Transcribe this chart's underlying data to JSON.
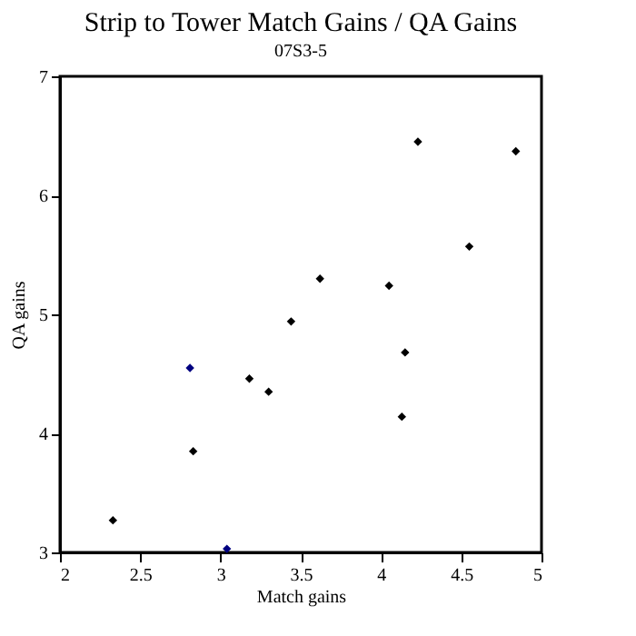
{
  "chart_data": {
    "type": "scatter",
    "title": "Strip to Tower Match Gains / QA Gains",
    "subtitle": "07S3-5",
    "xlabel": "Match gains",
    "ylabel": "QA gains",
    "x": [
      2.33,
      2.81,
      2.83,
      3.04,
      3.18,
      3.3,
      3.44,
      3.62,
      4.05,
      4.15,
      4.13,
      4.23,
      4.55,
      4.84
    ],
    "values": [
      3.27,
      4.55,
      3.85,
      3.03,
      4.46,
      4.35,
      4.94,
      5.3,
      5.24,
      4.68,
      4.14,
      6.45,
      5.57,
      6.37
    ],
    "colors": [
      "#000000",
      "#000080",
      "#000000",
      "#000080",
      "#000000",
      "#000000",
      "#000000",
      "#000000",
      "#000000",
      "#000000",
      "#000000",
      "#000000",
      "#000000",
      "#000000"
    ],
    "xlim": [
      2,
      5
    ],
    "xticks": [
      2,
      2.5,
      3,
      3.5,
      4,
      4.5,
      5
    ],
    "ylim": [
      3,
      7
    ],
    "yticks": [
      3,
      4,
      5,
      6,
      7
    ],
    "marker": "diamond",
    "grid": false
  }
}
